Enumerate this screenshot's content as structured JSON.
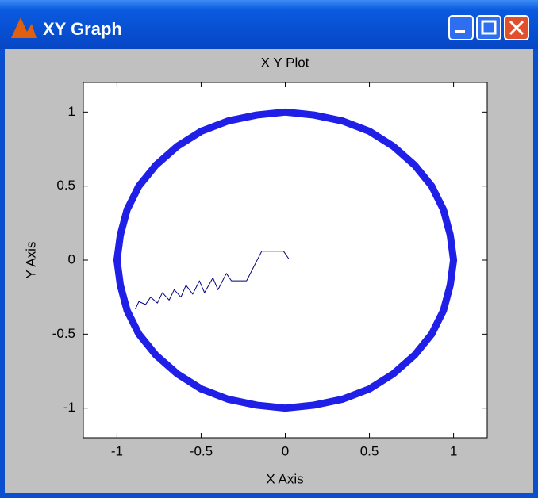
{
  "window": {
    "title": "XY Graph"
  },
  "chart_data": {
    "type": "line",
    "title": "X Y Plot",
    "xlabel": "X Axis",
    "ylabel": "Y Axis",
    "xlim": [
      -1.2,
      1.2
    ],
    "ylim": [
      -1.2,
      1.2
    ],
    "xticks": [
      -1,
      -0.5,
      0,
      0.5,
      1
    ],
    "yticks": [
      -1,
      -0.5,
      0,
      0.5,
      1
    ],
    "grid": false,
    "series": [
      {
        "color": "#1f1fe8",
        "linewidth": 9,
        "x": [
          1,
          0.98,
          0.94,
          0.87,
          0.77,
          0.64,
          0.5,
          0.34,
          0.17,
          0,
          -0.17,
          -0.34,
          -0.5,
          -0.64,
          -0.77,
          -0.87,
          -0.94,
          -0.98,
          -1,
          -0.98,
          -0.94,
          -0.87,
          -0.77,
          -0.64,
          -0.5,
          -0.34,
          -0.17,
          0,
          0.17,
          0.34,
          0.5,
          0.64,
          0.77,
          0.87,
          0.94,
          0.98,
          1
        ],
        "values": [
          0,
          0.17,
          0.34,
          0.5,
          0.64,
          0.77,
          0.87,
          0.94,
          0.98,
          1,
          0.98,
          0.94,
          0.87,
          0.77,
          0.64,
          0.5,
          0.34,
          0.17,
          0,
          -0.17,
          -0.34,
          -0.5,
          -0.64,
          -0.77,
          -0.87,
          -0.94,
          -0.98,
          -1,
          -0.98,
          -0.94,
          -0.87,
          -0.77,
          -0.64,
          -0.5,
          -0.34,
          -0.17,
          0
        ]
      },
      {
        "color": "#000080",
        "linewidth": 1,
        "x": [
          0.02,
          -0.01,
          -0.14,
          -0.23,
          -0.32,
          -0.35,
          -0.4,
          -0.43,
          -0.48,
          -0.51,
          -0.55,
          -0.59,
          -0.62,
          -0.66,
          -0.69,
          -0.73,
          -0.76,
          -0.8,
          -0.83,
          -0.87,
          -0.89
        ],
        "values": [
          0.01,
          0.06,
          0.06,
          -0.14,
          -0.14,
          -0.09,
          -0.2,
          -0.12,
          -0.22,
          -0.14,
          -0.23,
          -0.17,
          -0.25,
          -0.2,
          -0.27,
          -0.22,
          -0.29,
          -0.25,
          -0.3,
          -0.28,
          -0.33
        ]
      }
    ]
  }
}
